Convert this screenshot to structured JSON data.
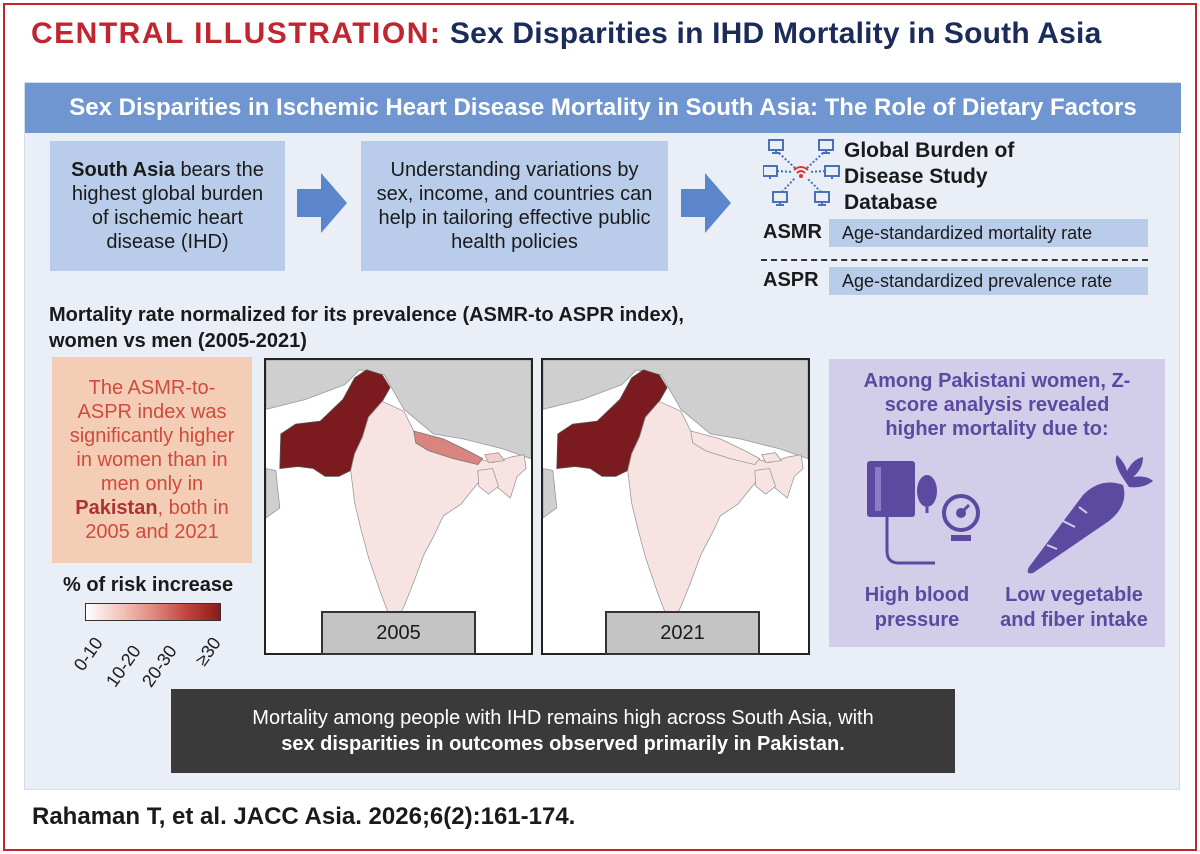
{
  "header": {
    "label": "CENTRAL ILLUSTRATION:",
    "title": "Sex Disparities in IHD Mortality in South Asia"
  },
  "panel_title": "Sex Disparities in Ischemic Heart Disease Mortality in South Asia: The Role of Dietary Factors",
  "flow": {
    "box1_bold": "South Asia",
    "box1_text": "bears the highest global burden of ischemic heart disease (IHD)",
    "box2_text1": "Understanding variations by sex, income, and countries",
    "box2_text2": "can help in tailoring effective public health policies"
  },
  "gbd": {
    "title_line1": "Global Burden of",
    "title_line2": "Disease Study",
    "title_line3": "Database",
    "icon": "network-computers-icon"
  },
  "abbreviations": [
    {
      "abbr": "ASMR",
      "definition": "Age-standardized mortality rate"
    },
    {
      "abbr": "ASPR",
      "definition": "Age-standardized prevalence rate"
    }
  ],
  "section_title_line1": "Mortality rate normalized for its prevalence (ASMR-to ASPR index),",
  "section_title_line2": "women vs men (2005-2021)",
  "finding": {
    "text_before": "The ASMR-to-ASPR index was significantly higher in women than in men only in",
    "highlight": "Pakistan",
    "text_after": ", both in 2005 and 2021"
  },
  "legend": {
    "title": "% of risk increase",
    "ticks": [
      "0-10",
      "10-20",
      "20-30",
      "≥30"
    ],
    "colors": [
      "#fbeeea",
      "#f0b8ae",
      "#d1665d",
      "#8b1a1a"
    ]
  },
  "maps": [
    {
      "year": "2005"
    },
    {
      "year": "2021"
    }
  ],
  "colors": {
    "pakistan": "#7b1b1f",
    "low": "#f7e4e2",
    "mid": "#d88580",
    "land_other": "#cfcfcf",
    "water": "#ffffff"
  },
  "dietary": {
    "title": "Among Pakistani women, Z-score analysis revealed higher mortality due to:",
    "factors": [
      {
        "label_line1": "High blood",
        "label_line2": "pressure",
        "icon": "blood-pressure-icon"
      },
      {
        "label_line1": "Low vegetable",
        "label_line2": "and fiber intake",
        "icon": "carrot-icon"
      }
    ]
  },
  "conclusion": {
    "line1": "Mortality among people with IHD remains high across South Asia, with",
    "line2": "sex disparities in outcomes observed primarily in Pakistan."
  },
  "citation": "Rahaman T, et al. JACC Asia. 2026;6(2):161-174."
}
